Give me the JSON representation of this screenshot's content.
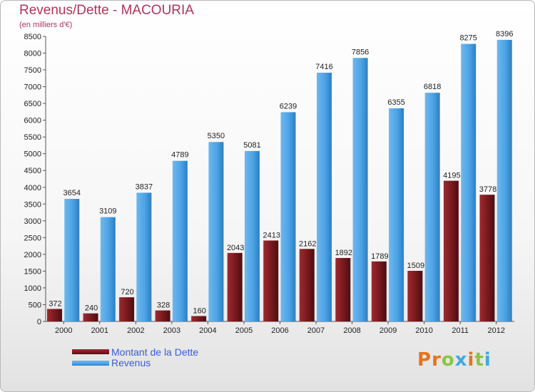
{
  "colors": {
    "debt": "#7a1a1e",
    "revenue": "#4da3e4",
    "title": "#b0345a",
    "legend_text": "#3b5bdb"
  },
  "chart_data": {
    "type": "bar",
    "title": "Revenus/Dette - MACOURIA",
    "subtitle": "(en milliers d'€)",
    "xlabel": "",
    "ylabel": "",
    "ylim": [
      0,
      8500
    ],
    "yticks": [
      0,
      500,
      1000,
      1500,
      2000,
      2500,
      3000,
      3500,
      4000,
      4500,
      5000,
      5500,
      6000,
      6500,
      7000,
      7500,
      8000,
      8500
    ],
    "grid": false,
    "legend_position": "bottom-left",
    "categories": [
      "2000",
      "2001",
      "2002",
      "2003",
      "2004",
      "2005",
      "2006",
      "2007",
      "2008",
      "2009",
      "2010",
      "2011",
      "2012"
    ],
    "series": [
      {
        "name": "Montant de la Dette",
        "values": [
          372,
          240,
          720,
          328,
          160,
          2043,
          2413,
          2162,
          1892,
          1789,
          1509,
          4195,
          3778
        ],
        "labels": [
          "372",
          "240",
          "720",
          "328",
          "160",
          "2043",
          "2413",
          "2162",
          "1892",
          "1789",
          "1509",
          "4195",
          "3778"
        ]
      },
      {
        "name": "Revenus",
        "values": [
          3654,
          3109,
          3837,
          4789,
          5350,
          5081,
          6239,
          7416,
          7856,
          6355,
          6818,
          8275,
          8396
        ],
        "labels": [
          "3654",
          "3109",
          "3837",
          "4789",
          "5350",
          "5081",
          "6239",
          "7416",
          "7856",
          "6355",
          "6818",
          "8275",
          "8396"
        ]
      }
    ]
  },
  "legend": {
    "debt_label": "Montant de la Dette",
    "revenue_label": "Revenus"
  },
  "logo": {
    "text": "Proxiti",
    "letter_colors": [
      "#e8731a",
      "#e8731a",
      "#8bc540",
      "#3fa9e0",
      "#e8731a",
      "#8bc540",
      "#3fa9e0"
    ]
  }
}
